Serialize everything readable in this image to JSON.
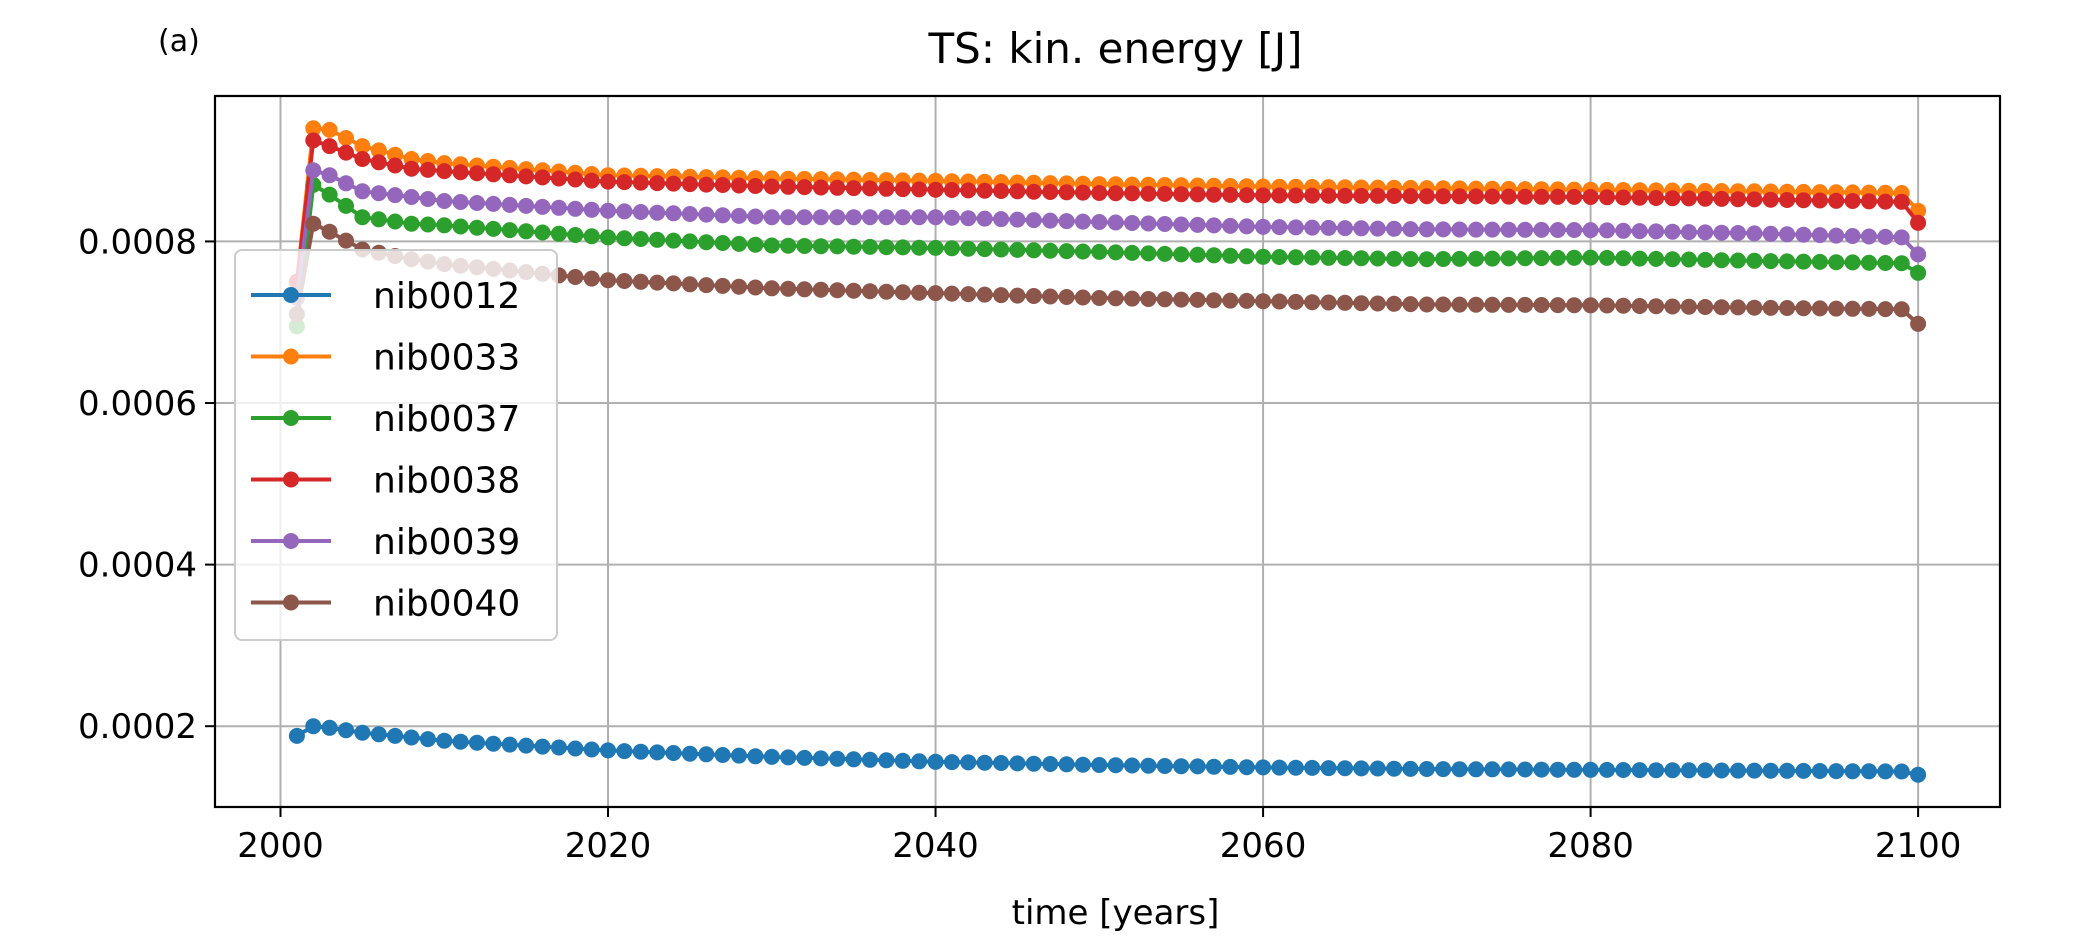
{
  "panel_label": "(a)",
  "chart_data": {
    "type": "line",
    "title": "TS: kin. energy [J]",
    "xlabel": "time [years]",
    "ylabel": "",
    "xlim": [
      1996,
      2105
    ],
    "ylim": [
      0.0001,
      0.00098
    ],
    "xticks": [
      2000,
      2020,
      2040,
      2060,
      2080,
      2100
    ],
    "xtick_labels": [
      "2000",
      "2020",
      "2040",
      "2060",
      "2080",
      "2100"
    ],
    "yticks": [
      0.0002,
      0.0004,
      0.0006,
      0.0008
    ],
    "ytick_labels": [
      "0.0002",
      "0.0004",
      "0.0006",
      "0.0008"
    ],
    "grid": true,
    "legend_position": "center-left",
    "x_start": 2001,
    "x_end": 2100,
    "x_step": 1,
    "marker": "circle",
    "series": [
      {
        "name": "nib0012",
        "color": "#1f77b4",
        "anchors": [
          [
            2001,
            0.000188
          ],
          [
            2002,
            0.0002
          ],
          [
            2003,
            0.000198
          ],
          [
            2005,
            0.000192
          ],
          [
            2010,
            0.000182
          ],
          [
            2020,
            0.00017
          ],
          [
            2030,
            0.000162
          ],
          [
            2040,
            0.000156
          ],
          [
            2050,
            0.000152
          ],
          [
            2060,
            0.000149
          ],
          [
            2070,
            0.000147
          ],
          [
            2080,
            0.000146
          ],
          [
            2090,
            0.000145
          ],
          [
            2099,
            0.000144
          ],
          [
            2100,
            0.00014
          ]
        ]
      },
      {
        "name": "nib0033",
        "color": "#ff7f0e",
        "anchors": [
          [
            2001,
            0.00075
          ],
          [
            2002,
            0.00094
          ],
          [
            2003,
            0.000938
          ],
          [
            2005,
            0.000918
          ],
          [
            2008,
            0.000902
          ],
          [
            2010,
            0.000897
          ],
          [
            2020,
            0.000882
          ],
          [
            2030,
            0.000878
          ],
          [
            2040,
            0.000875
          ],
          [
            2050,
            0.000871
          ],
          [
            2060,
            0.000868
          ],
          [
            2070,
            0.000866
          ],
          [
            2080,
            0.000864
          ],
          [
            2090,
            0.000862
          ],
          [
            2099,
            0.00086
          ],
          [
            2100,
            0.000838
          ]
        ]
      },
      {
        "name": "nib0037",
        "color": "#2ca02c",
        "anchors": [
          [
            2001,
            0.000695
          ],
          [
            2002,
            0.00087
          ],
          [
            2003,
            0.000858
          ],
          [
            2005,
            0.00083
          ],
          [
            2008,
            0.000822
          ],
          [
            2010,
            0.00082
          ],
          [
            2020,
            0.000805
          ],
          [
            2030,
            0.000795
          ],
          [
            2040,
            0.000792
          ],
          [
            2050,
            0.000787
          ],
          [
            2060,
            0.000781
          ],
          [
            2070,
            0.000778
          ],
          [
            2080,
            0.00078
          ],
          [
            2090,
            0.000776
          ],
          [
            2099,
            0.000773
          ],
          [
            2100,
            0.000761
          ]
        ]
      },
      {
        "name": "nib0038",
        "color": "#d62728",
        "anchors": [
          [
            2001,
            0.00075
          ],
          [
            2002,
            0.000925
          ],
          [
            2003,
            0.000918
          ],
          [
            2005,
            0.000902
          ],
          [
            2008,
            0.00089
          ],
          [
            2010,
            0.000887
          ],
          [
            2020,
            0.000874
          ],
          [
            2030,
            0.000868
          ],
          [
            2040,
            0.000864
          ],
          [
            2050,
            0.00086
          ],
          [
            2060,
            0.000857
          ],
          [
            2070,
            0.000856
          ],
          [
            2080,
            0.000855
          ],
          [
            2090,
            0.000852
          ],
          [
            2099,
            0.000849
          ],
          [
            2100,
            0.000823
          ]
        ]
      },
      {
        "name": "nib0039",
        "color": "#9467bd",
        "anchors": [
          [
            2001,
            0.00073
          ],
          [
            2002,
            0.000888
          ],
          [
            2003,
            0.000882
          ],
          [
            2005,
            0.000862
          ],
          [
            2008,
            0.000855
          ],
          [
            2010,
            0.00085
          ],
          [
            2020,
            0.000838
          ],
          [
            2030,
            0.00083
          ],
          [
            2040,
            0.00083
          ],
          [
            2050,
            0.000824
          ],
          [
            2060,
            0.000818
          ],
          [
            2070,
            0.000815
          ],
          [
            2080,
            0.000814
          ],
          [
            2090,
            0.00081
          ],
          [
            2099,
            0.000805
          ],
          [
            2100,
            0.000784
          ]
        ]
      },
      {
        "name": "nib0040",
        "color": "#8c564b",
        "anchors": [
          [
            2001,
            0.00071
          ],
          [
            2002,
            0.000822
          ],
          [
            2003,
            0.000812
          ],
          [
            2005,
            0.00079
          ],
          [
            2008,
            0.000778
          ],
          [
            2010,
            0.000772
          ],
          [
            2020,
            0.000752
          ],
          [
            2030,
            0.000742
          ],
          [
            2040,
            0.000736
          ],
          [
            2050,
            0.00073
          ],
          [
            2060,
            0.000726
          ],
          [
            2070,
            0.000722
          ],
          [
            2080,
            0.000721
          ],
          [
            2090,
            0.000718
          ],
          [
            2099,
            0.000716
          ],
          [
            2100,
            0.000698
          ]
        ]
      }
    ]
  }
}
